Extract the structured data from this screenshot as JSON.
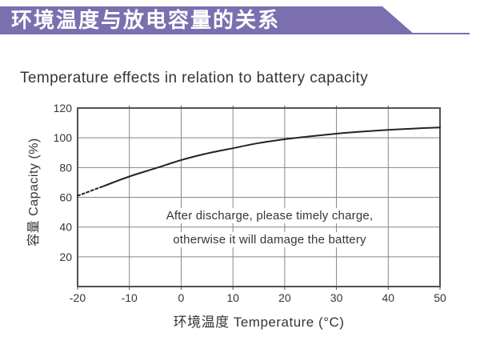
{
  "header": {
    "title_zh": "环境温度与放电容量的关系"
  },
  "title": "Temperature effects in relation to battery capacity",
  "chart_data": {
    "type": "line",
    "title": "Temperature effects in relation to battery capacity",
    "xlabel": "环境温度 Temperature (°C)",
    "ylabel": "容量 Capacity (%)",
    "xlim": [
      -20,
      50
    ],
    "ylim": [
      0,
      120
    ],
    "x_ticks": [
      -20,
      -10,
      0,
      10,
      20,
      30,
      40,
      50
    ],
    "y_ticks": [
      20,
      40,
      60,
      80,
      100,
      120
    ],
    "grid": true,
    "legend": "none",
    "series": [
      {
        "name": "capacity",
        "x": [
          -20,
          -15,
          -10,
          -5,
          0,
          5,
          10,
          15,
          20,
          25,
          30,
          35,
          40,
          45,
          50
        ],
        "y": [
          61,
          67.5,
          74,
          79.5,
          85,
          89.5,
          93,
          96.5,
          99,
          101,
          102.8,
          104.2,
          105.3,
          106.2,
          107
        ],
        "dashed_until_x": -15
      }
    ],
    "annotation": [
      "After discharge, please timely charge,",
      "otherwise it will damage the battery"
    ]
  },
  "colors": {
    "banner": "#7b6fb0",
    "grid": "#8b8585",
    "frame": "#55504e",
    "curve": "#27211f",
    "text": "#3a3430"
  }
}
